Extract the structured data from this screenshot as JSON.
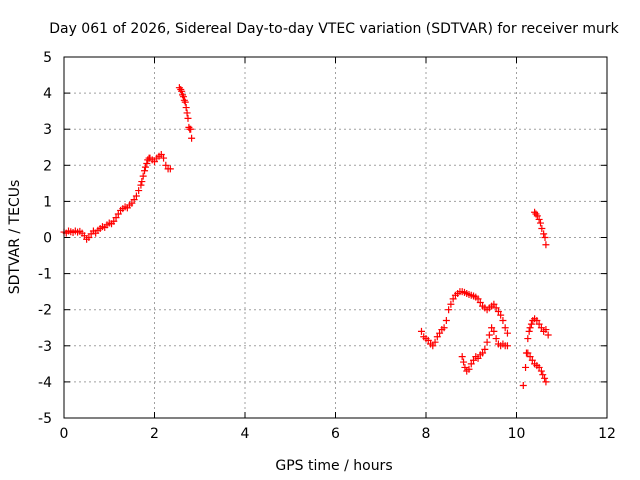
{
  "chart_data": {
    "type": "scatter",
    "title": "Day 061 of 2026, Sidereal Day-to-day VTEC variation (SDTVAR) for receiver murk",
    "xlabel": "GPS time / hours",
    "ylabel": "SDTVAR / TECUs",
    "xlim": [
      0,
      12
    ],
    "ylim": [
      -5,
      5
    ],
    "xticks": [
      0,
      2,
      4,
      6,
      8,
      10,
      12
    ],
    "yticks": [
      -5,
      -4,
      -3,
      -2,
      -1,
      0,
      1,
      2,
      3,
      4,
      5
    ],
    "grid": true,
    "marker": "+",
    "color": "#ff0000",
    "series": [
      {
        "name": "segment-1",
        "x": [
          0.0,
          0.05,
          0.1,
          0.15,
          0.2,
          0.25,
          0.3,
          0.35,
          0.4,
          0.45,
          0.5,
          0.55,
          0.6,
          0.65,
          0.7,
          0.75,
          0.8,
          0.85,
          0.9,
          0.95,
          1.0,
          1.05,
          1.1,
          1.15,
          1.2,
          1.25,
          1.3,
          1.35,
          1.4,
          1.45,
          1.5,
          1.55,
          1.6,
          1.65,
          1.7,
          1.72,
          1.75,
          1.78,
          1.8,
          1.83,
          1.85,
          1.88,
          1.9,
          1.95,
          2.0,
          2.05,
          2.1,
          2.15,
          2.2,
          2.25,
          2.3,
          2.35
        ],
        "y": [
          0.15,
          0.12,
          0.18,
          0.16,
          0.14,
          0.18,
          0.15,
          0.17,
          0.12,
          0.05,
          -0.05,
          0.0,
          0.1,
          0.18,
          0.12,
          0.2,
          0.25,
          0.3,
          0.28,
          0.35,
          0.4,
          0.38,
          0.45,
          0.55,
          0.65,
          0.75,
          0.8,
          0.85,
          0.82,
          0.9,
          0.95,
          1.05,
          1.15,
          1.3,
          1.45,
          1.55,
          1.7,
          1.85,
          1.95,
          2.05,
          2.15,
          2.2,
          2.2,
          2.15,
          2.1,
          2.2,
          2.25,
          2.3,
          2.2,
          2.0,
          1.9,
          1.9
        ]
      },
      {
        "name": "segment-2",
        "x": [
          2.55,
          2.58,
          2.6,
          2.62,
          2.64,
          2.66,
          2.68,
          2.7,
          2.72,
          2.74,
          2.76,
          2.78,
          2.8,
          2.82
        ],
        "y": [
          4.15,
          4.1,
          4.05,
          3.95,
          3.9,
          3.8,
          3.75,
          3.6,
          3.45,
          3.3,
          3.05,
          3.0,
          3.0,
          2.75
        ]
      },
      {
        "name": "segment-3",
        "x": [
          7.9,
          7.95,
          8.0,
          8.05,
          8.1,
          8.15,
          8.2,
          8.25,
          8.3,
          8.35,
          8.4,
          8.45,
          8.5,
          8.55,
          8.6,
          8.65,
          8.7,
          8.75,
          8.8,
          8.85,
          8.9,
          8.95,
          9.0,
          9.05,
          9.1,
          9.15,
          9.2,
          9.25,
          9.3,
          9.35,
          9.4,
          9.45,
          9.5,
          9.55,
          9.6,
          9.65,
          9.7,
          9.75,
          9.8
        ],
        "y": [
          -2.6,
          -2.75,
          -2.8,
          -2.85,
          -2.95,
          -3.0,
          -2.9,
          -2.75,
          -2.65,
          -2.55,
          -2.5,
          -2.3,
          -2.0,
          -1.85,
          -1.7,
          -1.6,
          -1.55,
          -1.5,
          -1.5,
          -1.52,
          -1.55,
          -1.58,
          -1.6,
          -1.62,
          -1.65,
          -1.7,
          -1.8,
          -1.9,
          -1.95,
          -2.0,
          -1.95,
          -1.9,
          -1.85,
          -1.95,
          -2.05,
          -2.15,
          -2.3,
          -2.5,
          -2.65
        ]
      },
      {
        "name": "segment-4",
        "x": [
          8.8,
          8.83,
          8.86,
          8.9,
          8.95,
          9.0,
          9.05,
          9.1,
          9.15,
          9.2,
          9.25,
          9.3,
          9.35,
          9.4,
          9.45,
          9.5,
          9.55,
          9.6,
          9.65,
          9.7,
          9.75,
          9.8
        ],
        "y": [
          -3.3,
          -3.45,
          -3.6,
          -3.7,
          -3.65,
          -3.5,
          -3.4,
          -3.3,
          -3.35,
          -3.25,
          -3.2,
          -3.1,
          -2.9,
          -2.7,
          -2.5,
          -2.6,
          -2.8,
          -2.95,
          -3.0,
          -2.95,
          -3.0,
          -3.0
        ]
      },
      {
        "name": "segment-5",
        "x": [
          10.15,
          10.2,
          10.22,
          10.25,
          10.28,
          10.3,
          10.33,
          10.36,
          10.4,
          10.45,
          10.5,
          10.55,
          10.6,
          10.65,
          10.7
        ],
        "y": [
          -4.1,
          -3.6,
          -3.2,
          -2.8,
          -2.6,
          -2.5,
          -2.4,
          -2.3,
          -2.25,
          -2.3,
          -2.4,
          -2.5,
          -2.6,
          -2.55,
          -2.7
        ]
      },
      {
        "name": "segment-6",
        "x": [
          10.25,
          10.3,
          10.35,
          10.4,
          10.45,
          10.5,
          10.55,
          10.58,
          10.62,
          10.65
        ],
        "y": [
          -3.2,
          -3.3,
          -3.4,
          -3.5,
          -3.55,
          -3.6,
          -3.7,
          -3.8,
          -3.9,
          -4.0
        ]
      },
      {
        "name": "segment-7",
        "x": [
          10.4,
          10.43,
          10.46,
          10.5,
          10.53,
          10.56,
          10.6,
          10.63,
          10.65
        ],
        "y": [
          0.7,
          0.65,
          0.6,
          0.5,
          0.4,
          0.25,
          0.1,
          0.0,
          -0.2
        ]
      }
    ]
  }
}
